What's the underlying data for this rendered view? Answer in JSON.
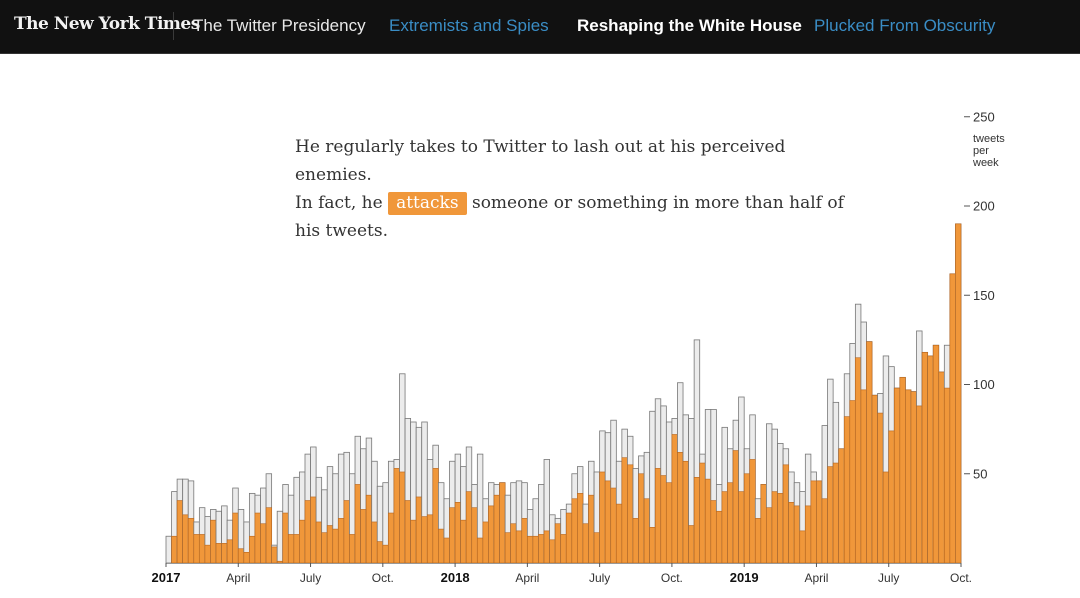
{
  "header": {
    "logo": "The New York Times",
    "section": "The Twitter Presidency",
    "nav": [
      {
        "label": "Extremists and Spies",
        "active": false
      },
      {
        "label": "Reshaping the White House",
        "active": true
      },
      {
        "label": "Plucked From Obscurity",
        "active": false
      }
    ]
  },
  "caption": {
    "line1": "He regularly takes to Twitter to lash out at his perceived enemies.",
    "pre": "In fact, he",
    "highlight": "attacks",
    "post": "someone or something in more than half of his tweets."
  },
  "colors": {
    "attacks": "#f0973a",
    "total": "#ececec",
    "highlight": "#f0973a",
    "nav_link": "#3a8dc5"
  },
  "chart_data": {
    "type": "bar",
    "stacked": true,
    "title": "",
    "ylabel": "tweets per week",
    "ylim": [
      0,
      270
    ],
    "yticks": [
      50,
      100,
      150,
      200,
      250
    ],
    "x_tick_labels": [
      {
        "label": "2017",
        "bold": true,
        "week": 0
      },
      {
        "label": "April",
        "week": 13
      },
      {
        "label": "July",
        "week": 26
      },
      {
        "label": "Oct.",
        "week": 39
      },
      {
        "label": "2018",
        "bold": true,
        "week": 52
      },
      {
        "label": "April",
        "week": 65
      },
      {
        "label": "July",
        "week": 78
      },
      {
        "label": "Oct.",
        "week": 91
      },
      {
        "label": "2019",
        "bold": true,
        "week": 104
      },
      {
        "label": "April",
        "week": 117
      },
      {
        "label": "July",
        "week": 130
      },
      {
        "label": "Oct.",
        "week": 143
      }
    ],
    "series": [
      {
        "name": "Tweets with attacks",
        "values": [
          0,
          15,
          35,
          27,
          25,
          16,
          16,
          10,
          24,
          11,
          11,
          13,
          28,
          8,
          6,
          15,
          28,
          22,
          31,
          9,
          1,
          28,
          16,
          16,
          24,
          35,
          37,
          23,
          17,
          21,
          19,
          25,
          35,
          16,
          44,
          30,
          38,
          23,
          12,
          10,
          28,
          53,
          51,
          35,
          24,
          37,
          26,
          27,
          53,
          19,
          14,
          31,
          34,
          24,
          40,
          31,
          14,
          23,
          32,
          38,
          45,
          17,
          22,
          18,
          25,
          15,
          15,
          16,
          18,
          13,
          22,
          16,
          28,
          36,
          39,
          22,
          38,
          17,
          51,
          46,
          42,
          33,
          59,
          55,
          25,
          50,
          36,
          20,
          53,
          49,
          45,
          72,
          62,
          57,
          21,
          48,
          56,
          47,
          35,
          29,
          40,
          45,
          63,
          40,
          50,
          58,
          25,
          44,
          31,
          40,
          39,
          55,
          34,
          32,
          18,
          32,
          46,
          46,
          36,
          54,
          56,
          64,
          82,
          91,
          115,
          97,
          124,
          94,
          84,
          51,
          74,
          98,
          104,
          97,
          96,
          88,
          118,
          116,
          122,
          107,
          98,
          162,
          190
        ]
      },
      {
        "name": "Total tweets",
        "values": [
          15,
          40,
          47,
          47,
          46,
          23,
          31,
          26,
          30,
          29,
          32,
          24,
          42,
          30,
          23,
          39,
          38,
          42,
          50,
          10,
          29,
          44,
          38,
          48,
          51,
          61,
          65,
          48,
          41,
          54,
          50,
          61,
          62,
          50,
          71,
          64,
          70,
          57,
          43,
          45,
          57,
          58,
          106,
          81,
          79,
          76,
          79,
          58,
          66,
          45,
          36,
          57,
          61,
          54,
          65,
          44,
          61,
          36,
          45,
          44,
          36,
          38,
          45,
          46,
          45,
          30,
          36,
          44,
          58,
          27,
          25,
          30,
          33,
          50,
          54,
          33,
          57,
          51,
          74,
          73,
          80,
          57,
          75,
          71,
          53,
          60,
          62,
          85,
          92,
          88,
          79,
          81,
          101,
          83,
          81,
          125,
          61,
          86,
          86,
          44,
          76,
          64,
          80,
          93,
          64,
          83,
          36,
          39,
          78,
          75,
          67,
          64,
          51,
          45,
          40,
          61,
          51,
          42,
          77,
          103,
          90,
          54,
          106,
          123,
          145,
          135,
          108,
          74,
          95,
          116,
          110,
          82,
          55,
          57,
          90,
          130,
          95,
          102,
          65,
          72,
          122,
          160,
          175
        ]
      }
    ]
  }
}
